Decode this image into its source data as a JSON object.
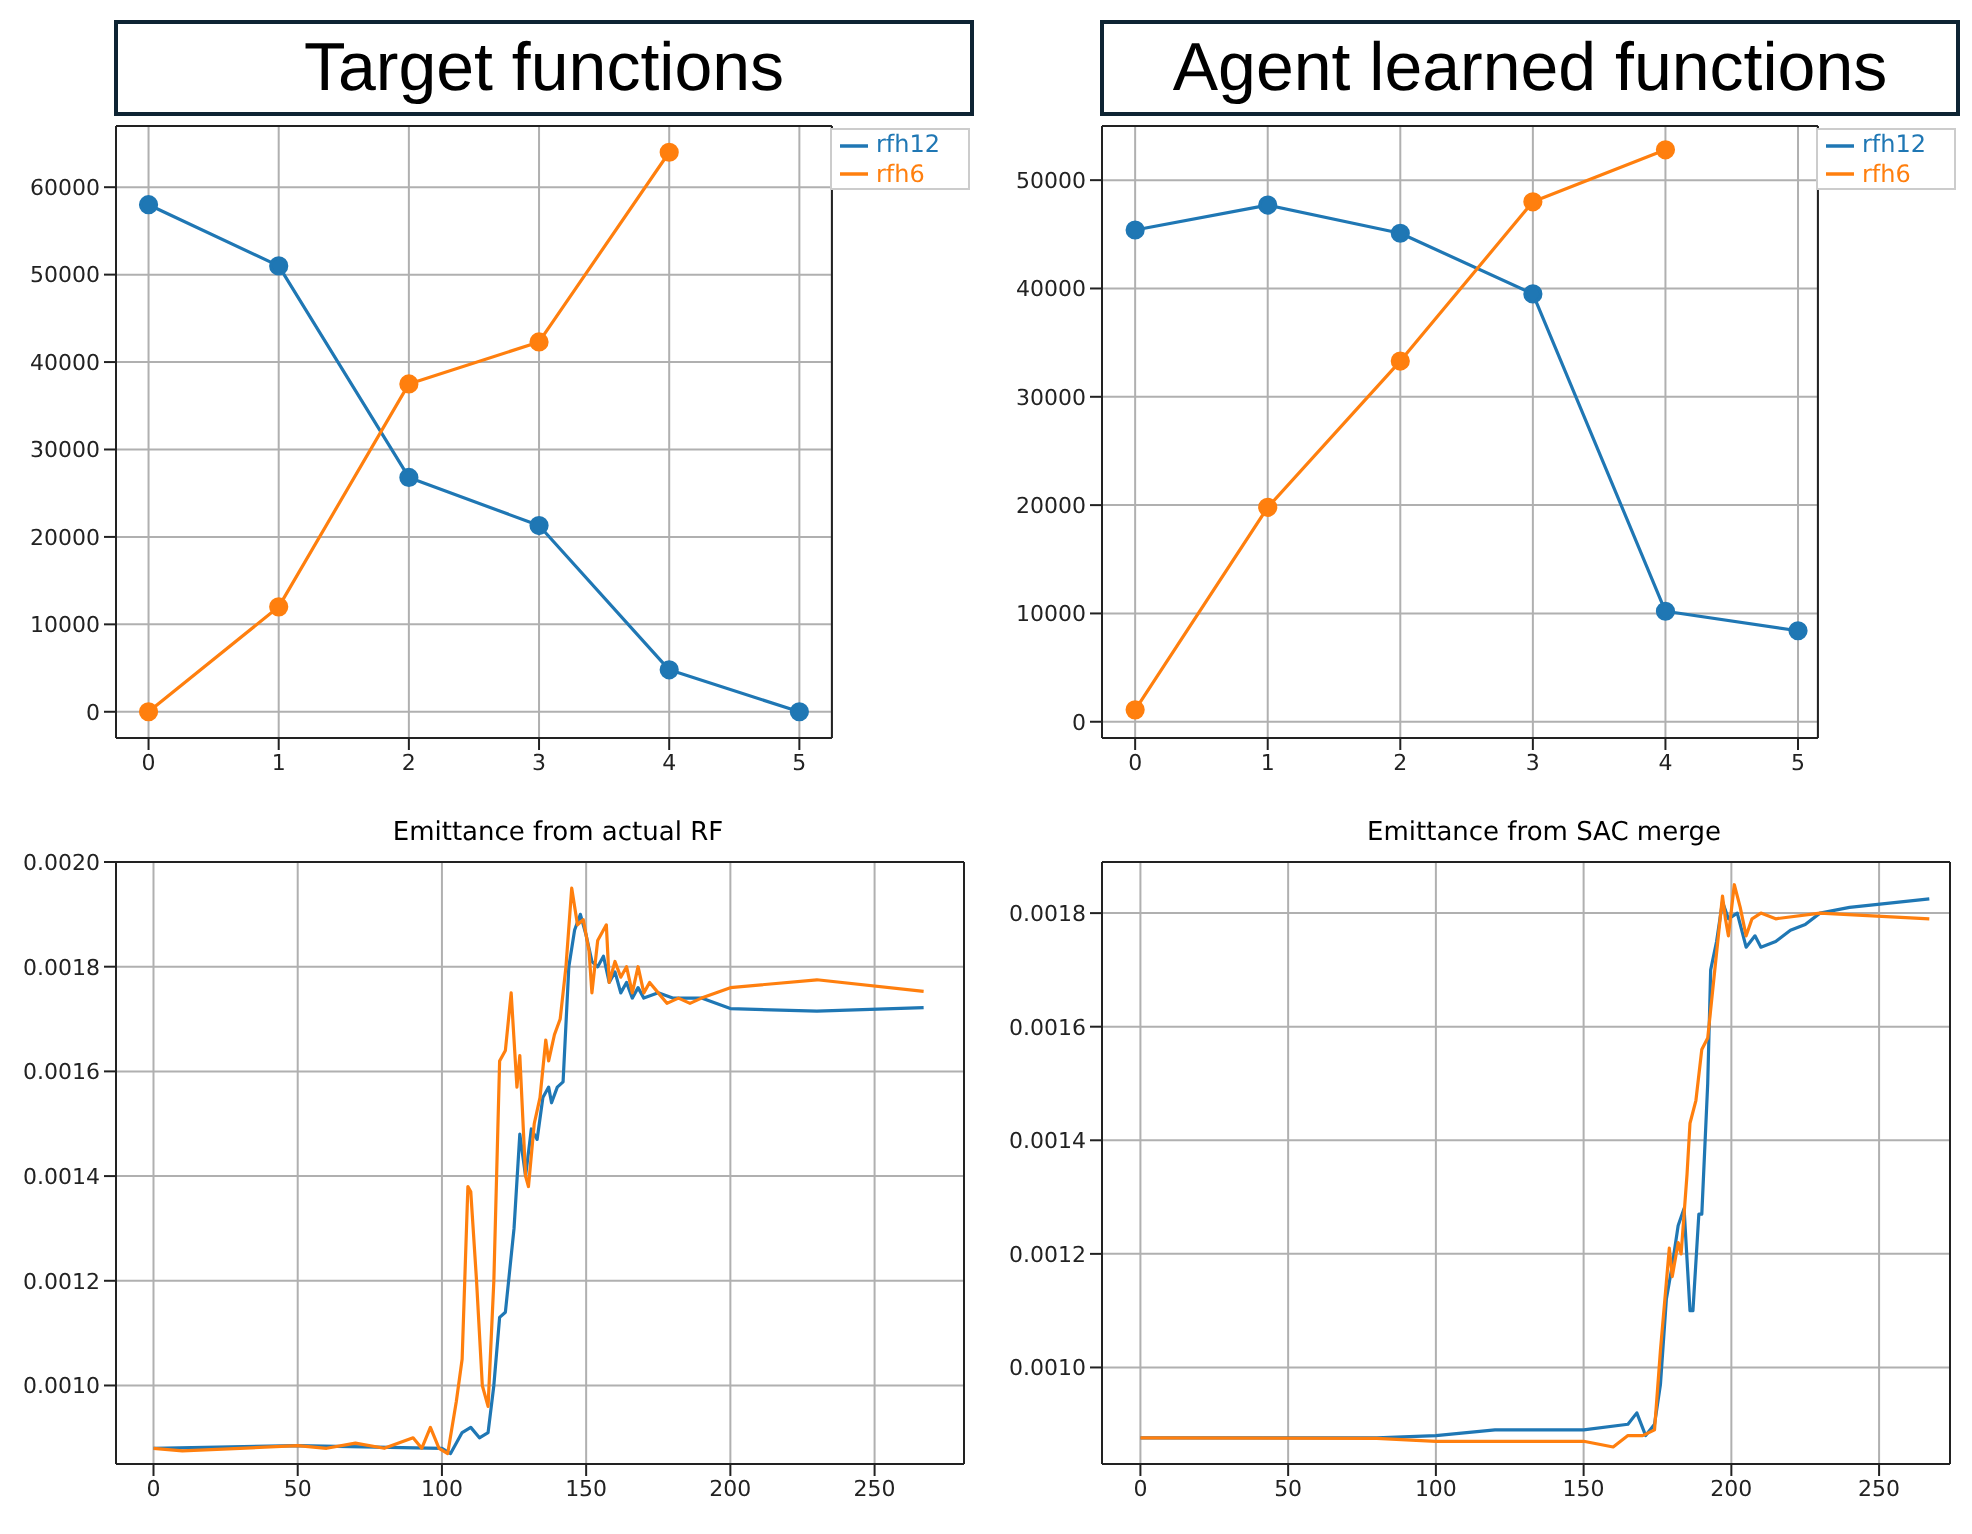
{
  "chart_data": [
    {
      "type": "line",
      "title": "Target functions",
      "x": [
        0,
        1,
        2,
        3,
        4,
        5
      ],
      "xlim": [
        -0.25,
        5.25
      ],
      "xticks": [
        0,
        1,
        2,
        3,
        4,
        5
      ],
      "ylim": [
        -3000,
        67000
      ],
      "yticks": [
        0,
        10000,
        20000,
        30000,
        40000,
        50000,
        60000
      ],
      "grid": true,
      "legend": "top right",
      "marker": "circle",
      "series": [
        {
          "name": "rfh12",
          "color": "#1f77b4",
          "values": [
            58000,
            51000,
            26800,
            21300,
            4800,
            0
          ]
        },
        {
          "name": "rfh6",
          "color": "#ff7f0e",
          "values": [
            0,
            12000,
            37500,
            42300,
            64000,
            null
          ]
        }
      ]
    },
    {
      "type": "line",
      "title": "Agent learned functions",
      "x": [
        0,
        1,
        2,
        3,
        4,
        5
      ],
      "xlim": [
        -0.25,
        5.15
      ],
      "xticks": [
        0,
        1,
        2,
        3,
        4,
        5
      ],
      "ylim": [
        -1500,
        55000
      ],
      "yticks": [
        0,
        10000,
        20000,
        30000,
        40000,
        50000
      ],
      "grid": true,
      "legend": "top right",
      "marker": "circle",
      "series": [
        {
          "name": "rfh12",
          "color": "#1f77b4",
          "values": [
            45400,
            47700,
            45100,
            39500,
            10200,
            8400
          ]
        },
        {
          "name": "rfh6",
          "color": "#ff7f0e",
          "values": [
            1100,
            19800,
            33300,
            48000,
            52800,
            null
          ]
        }
      ]
    },
    {
      "type": "line",
      "title": "Emittance from actual RF",
      "xlim": [
        -13,
        281
      ],
      "xticks": [
        0,
        50,
        100,
        150,
        200,
        250
      ],
      "ylim": [
        0.00085,
        0.002
      ],
      "yticks": [
        {
          "value": 0.001,
          "label": "0.0010"
        },
        {
          "value": 0.0012,
          "label": "0.0012"
        },
        {
          "value": 0.0014,
          "label": "0.0014"
        },
        {
          "value": 0.0016,
          "label": "0.0016"
        },
        {
          "value": 0.0018,
          "label": "0.0018"
        },
        {
          "value": 0.002,
          "label": "0.0020"
        }
      ],
      "grid": true,
      "series": [
        {
          "color": "#1f77b4",
          "x": [
            0,
            50,
            100,
            103,
            107,
            110,
            113,
            116,
            118,
            120,
            122,
            125,
            127,
            129,
            131,
            133,
            135,
            137,
            138,
            140,
            142,
            144,
            146,
            148,
            150,
            152,
            154,
            156,
            158,
            160,
            162,
            164,
            166,
            168,
            170,
            175,
            180,
            190,
            200,
            230,
            267
          ],
          "values": [
            0.00088,
            0.000885,
            0.00088,
            0.00087,
            0.00091,
            0.00092,
            0.0009,
            0.00091,
            0.001,
            0.00113,
            0.00114,
            0.0013,
            0.00148,
            0.0014,
            0.00149,
            0.00147,
            0.00155,
            0.00157,
            0.00154,
            0.00157,
            0.00158,
            0.0018,
            0.00187,
            0.0019,
            0.00186,
            0.00181,
            0.0018,
            0.00182,
            0.00177,
            0.00179,
            0.00175,
            0.00177,
            0.00174,
            0.00176,
            0.00174,
            0.00175,
            0.00174,
            0.00174,
            0.00172,
            0.001715,
            0.001722
          ]
        },
        {
          "color": "#ff7f0e",
          "x": [
            0,
            10,
            30,
            50,
            60,
            70,
            80,
            85,
            90,
            93,
            96,
            99,
            102,
            105,
            107,
            109,
            110,
            112,
            114,
            116,
            118,
            120,
            122,
            124,
            126,
            127,
            129,
            130,
            132,
            134,
            136,
            137,
            139,
            141,
            143,
            145,
            147,
            149,
            151,
            152,
            154,
            156,
            157,
            158,
            160,
            162,
            164,
            166,
            168,
            170,
            172,
            175,
            178,
            182,
            186,
            190,
            200,
            230,
            267
          ],
          "values": [
            0.00088,
            0.000875,
            0.00088,
            0.000885,
            0.00088,
            0.00089,
            0.00088,
            0.00089,
            0.0009,
            0.00088,
            0.00092,
            0.00088,
            0.00087,
            0.00097,
            0.00105,
            0.00138,
            0.00137,
            0.0012,
            0.001,
            0.00096,
            0.0012,
            0.00162,
            0.00164,
            0.00175,
            0.00157,
            0.00163,
            0.0014,
            0.00138,
            0.0015,
            0.00155,
            0.00166,
            0.00162,
            0.00167,
            0.0017,
            0.0018,
            0.00195,
            0.00188,
            0.00189,
            0.00183,
            0.00175,
            0.00185,
            0.00187,
            0.00188,
            0.00177,
            0.00181,
            0.00178,
            0.0018,
            0.00175,
            0.0018,
            0.00175,
            0.00177,
            0.00175,
            0.00173,
            0.00174,
            0.00173,
            0.00174,
            0.00176,
            0.001775,
            0.001753
          ]
        }
      ]
    },
    {
      "type": "line",
      "title": "Emittance from SAC merge",
      "xlim": [
        -13,
        274
      ],
      "xticks": [
        0,
        50,
        100,
        150,
        200,
        250
      ],
      "ylim": [
        0.00083,
        0.00189
      ],
      "yticks": [
        {
          "value": 0.001,
          "label": "0.0010"
        },
        {
          "value": 0.0012,
          "label": "0.0012"
        },
        {
          "value": 0.0014,
          "label": "0.0014"
        },
        {
          "value": 0.0016,
          "label": "0.0016"
        },
        {
          "value": 0.0018,
          "label": "0.0018"
        }
      ],
      "grid": true,
      "series": [
        {
          "color": "#1f77b4",
          "x": [
            0,
            80,
            100,
            120,
            150,
            165,
            168,
            171,
            174,
            176,
            178,
            180,
            182,
            184,
            186,
            187,
            189,
            190,
            192,
            193,
            195,
            197,
            199,
            202,
            205,
            208,
            210,
            215,
            220,
            225,
            230,
            240,
            267
          ],
          "values": [
            0.000876,
            0.000876,
            0.00088,
            0.00089,
            0.00089,
            0.0009,
            0.00092,
            0.00088,
            0.0009,
            0.00097,
            0.00112,
            0.00118,
            0.00125,
            0.00128,
            0.0011,
            0.0011,
            0.00127,
            0.00127,
            0.0015,
            0.0017,
            0.00175,
            0.00182,
            0.00179,
            0.0018,
            0.00174,
            0.00176,
            0.00174,
            0.00175,
            0.00177,
            0.00178,
            0.0018,
            0.00181,
            0.001825
          ]
        },
        {
          "color": "#ff7f0e",
          "x": [
            0,
            80,
            100,
            130,
            150,
            160,
            165,
            170,
            174,
            176,
            178,
            179,
            180,
            182,
            183,
            185,
            186,
            188,
            190,
            192,
            194,
            196,
            197,
            198,
            199,
            201,
            203,
            205,
            207,
            210,
            215,
            230,
            267
          ],
          "values": [
            0.000876,
            0.000875,
            0.00087,
            0.00087,
            0.00087,
            0.00086,
            0.00088,
            0.00088,
            0.00089,
            0.00103,
            0.00115,
            0.00121,
            0.00116,
            0.00122,
            0.0012,
            0.00134,
            0.00143,
            0.00147,
            0.00156,
            0.00158,
            0.00168,
            0.00178,
            0.00183,
            0.00179,
            0.00176,
            0.00185,
            0.00181,
            0.00176,
            0.00179,
            0.0018,
            0.00179,
            0.0018,
            0.00179
          ]
        }
      ]
    }
  ]
}
